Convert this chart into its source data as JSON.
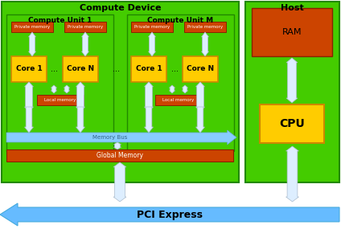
{
  "bg_color": "#ffffff",
  "compute_device_bg": "#44cc00",
  "host_bg": "#44cc00",
  "cu_inner_bg": "#44cc00",
  "core_color": "#ffcc00",
  "core_border": "#cc8800",
  "private_mem_color": "#cc4400",
  "local_mem_color": "#cc4400",
  "global_mem_color": "#cc4400",
  "ram_color": "#cc4400",
  "cpu_color": "#ffcc00",
  "cpu_border": "#cc8800",
  "memory_bus_color": "#88ccff",
  "pci_color": "#66bbff",
  "arrow_color": "#ddeeff",
  "arrow_edge": "#aabbcc",
  "title_compute": "Compute Device",
  "title_host": "Host",
  "label_cu1": "Compute Unit 1",
  "label_cum": "Compute Unit M",
  "label_core1_a": "Core 1",
  "label_coren_a": "Core N",
  "label_core1_b": "Core 1",
  "label_coren_b": "Core N",
  "label_private_mem": "Private memory",
  "label_local_mem": "Local memory",
  "label_global_mem": "Global Memory",
  "label_memory_bus": "Memory Bus",
  "label_pci": "PCI Express",
  "label_ram": "RAM",
  "label_cpu": "CPU",
  "dots": "..."
}
